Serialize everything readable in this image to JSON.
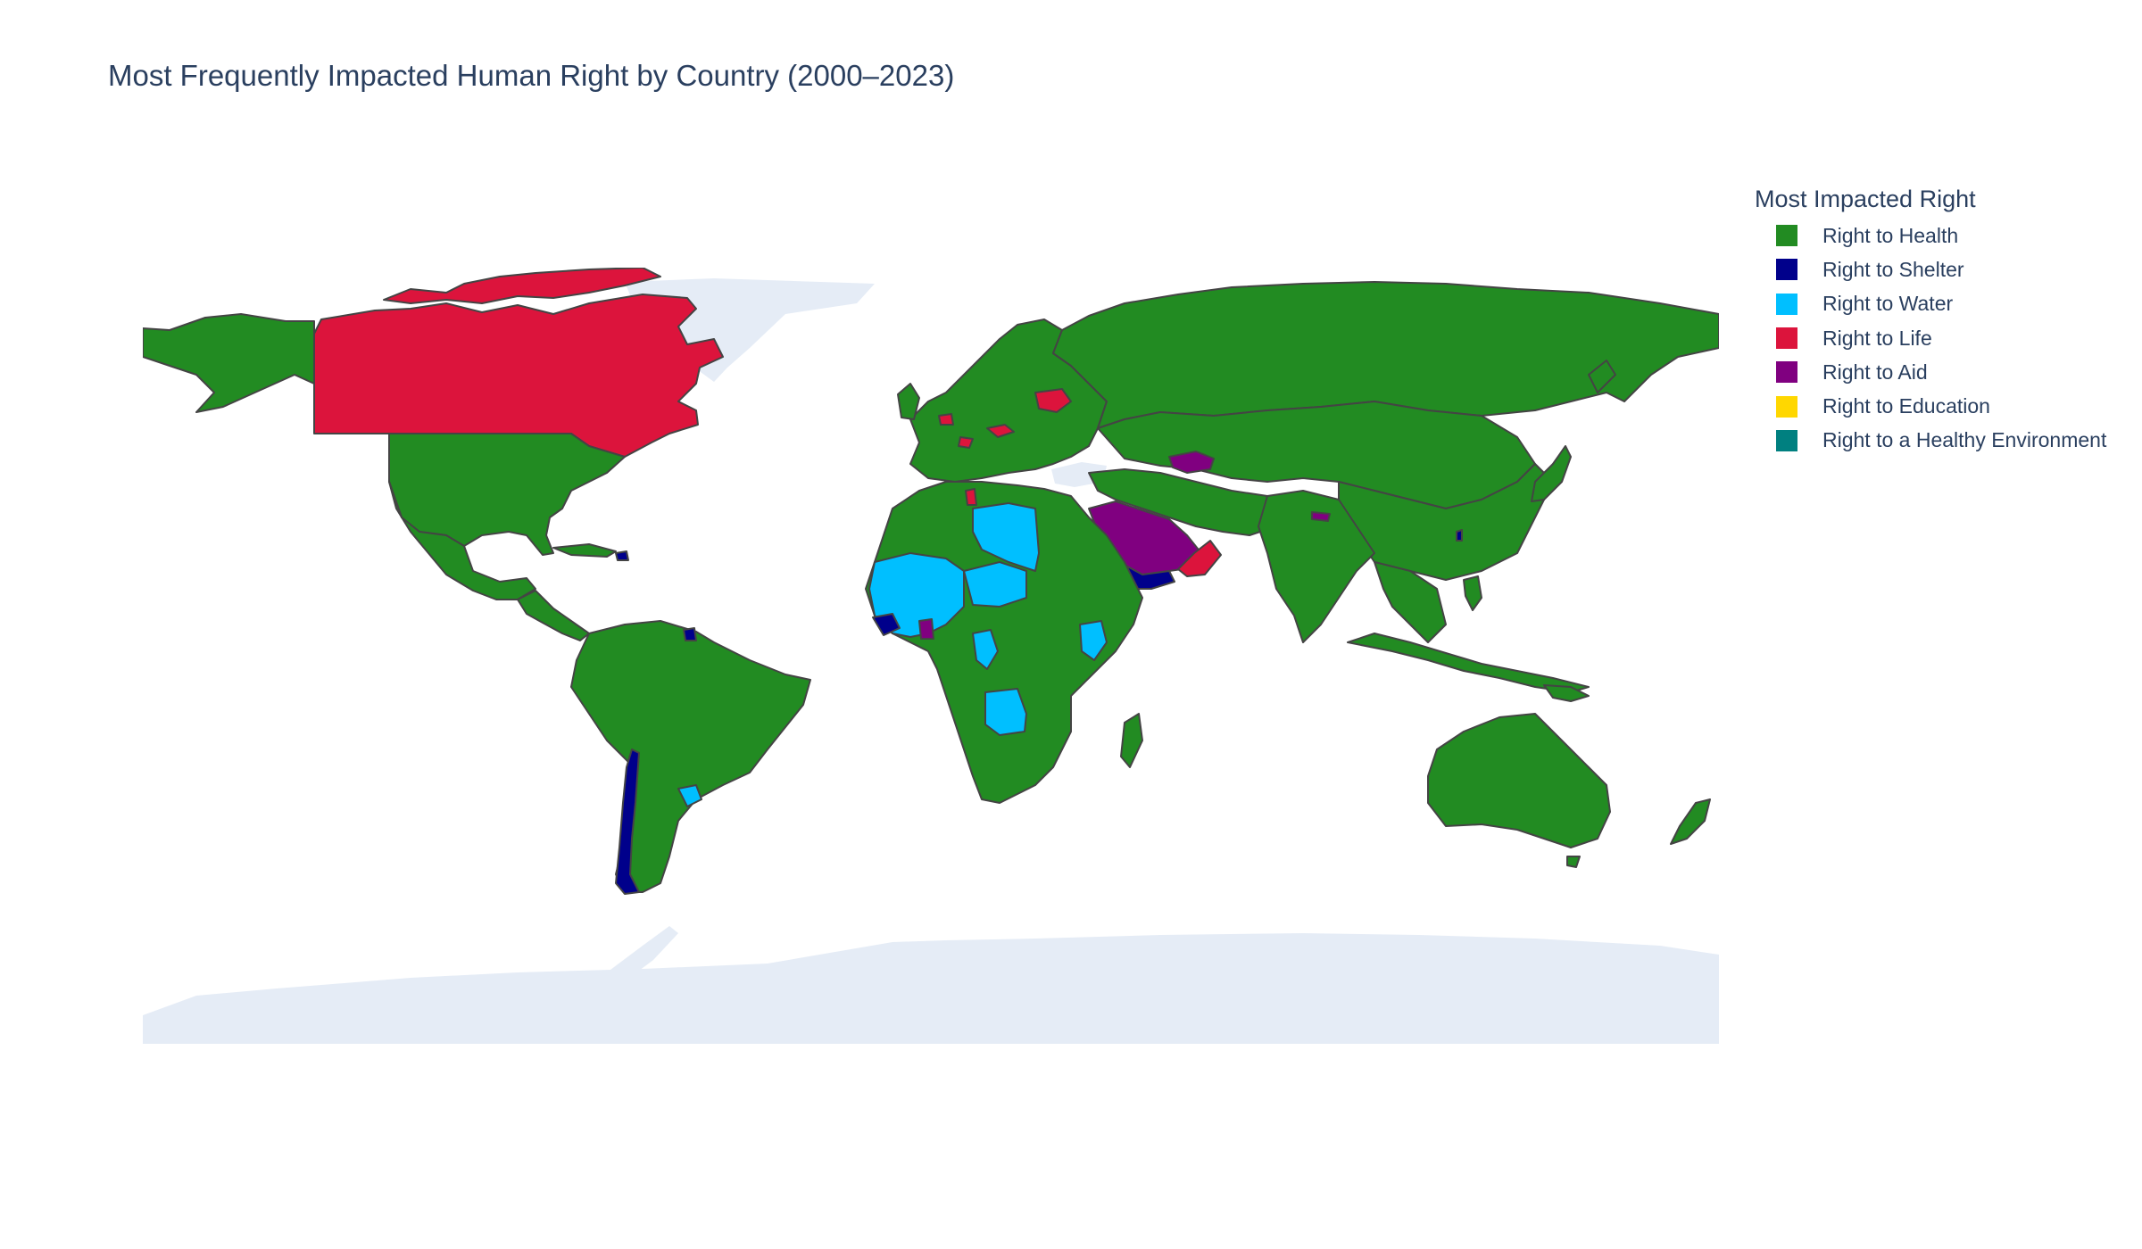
{
  "title": "Most Frequently Impacted Human Right by Country (2000–2023)",
  "legend": {
    "title": "Most Impacted Right",
    "items": [
      {
        "label": "Right to Health",
        "color": "#228B22"
      },
      {
        "label": "Right to Shelter",
        "color": "#00008B"
      },
      {
        "label": "Right to Water",
        "color": "#00BFFF"
      },
      {
        "label": "Right to Life",
        "color": "#DC143C"
      },
      {
        "label": "Right to Aid",
        "color": "#800080"
      },
      {
        "label": "Right to Education",
        "color": "#FFD700"
      },
      {
        "label": "Right to a Healthy Environment",
        "color": "#008080"
      }
    ]
  },
  "colors": {
    "no_data": "#E5ECF6",
    "border": "#444444"
  }
}
